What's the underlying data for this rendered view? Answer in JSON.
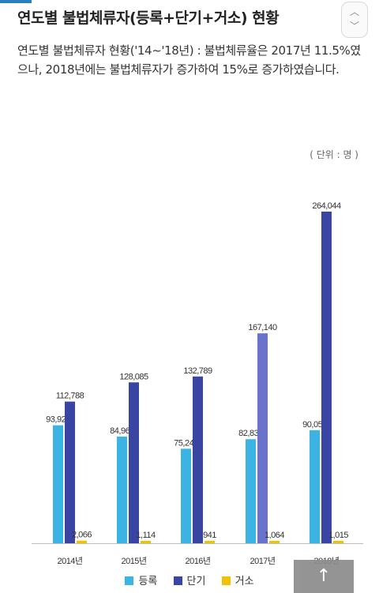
{
  "title": "연도별 불법체류자(등록+단기+거소) 현황",
  "description": "연도별 불법체류자 현황('14~'18년) : 불법체류율은 2017년 11.5%였으나, 2018년에는 불법체류자가 증가하여 15%로 증가하였습니다.",
  "unit": "( 단위 : 명 )",
  "chart_data": {
    "type": "bar",
    "categories": [
      "2014년",
      "2015년",
      "2016년",
      "2017년",
      "2018년"
    ],
    "series": [
      {
        "name": "등록",
        "values": [
          93924,
          84969,
          75241,
          82837,
          90051
        ],
        "labels": [
          "93,924",
          "84,969",
          "75,241",
          "82,837",
          "90,051"
        ],
        "color": "#3bb3e3"
      },
      {
        "name": "단기",
        "values": [
          112788,
          128085,
          132789,
          167140,
          264044
        ],
        "labels": [
          "112,788",
          "128,085",
          "132,789",
          "167,140",
          "264,044"
        ],
        "color": "#3a45a3",
        "highlight_color": "#6a72cc"
      },
      {
        "name": "거소",
        "values": [
          2066,
          1114,
          941,
          1064,
          1015
        ],
        "labels": [
          "2,066",
          "1,114",
          "941",
          "1,064",
          "1,015"
        ],
        "color": "#f2c200"
      }
    ],
    "ylim": [
      0,
      264044
    ],
    "grid": false,
    "legend": "bottom"
  },
  "ui": {
    "scroll_up_icon": "chevron-up-icon",
    "scroll_down_icon": "chevron-down-icon",
    "top_button_symbol": "↑"
  }
}
